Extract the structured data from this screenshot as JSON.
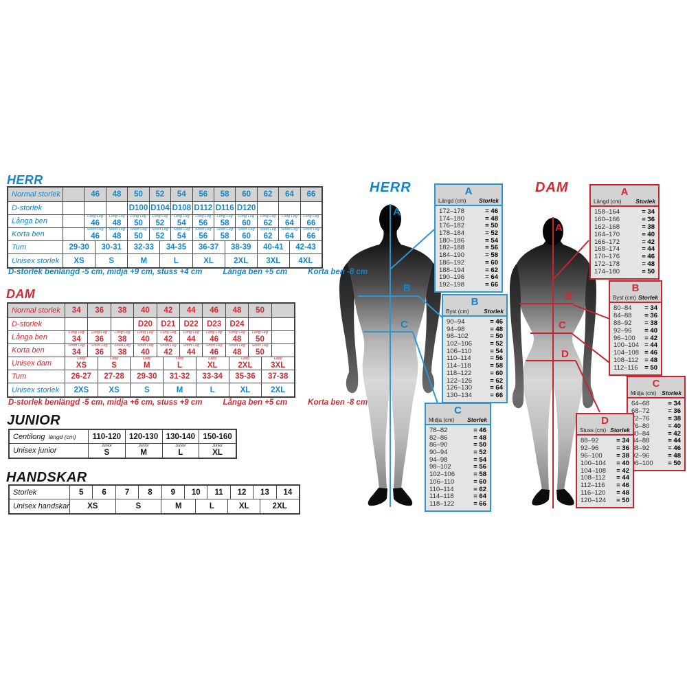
{
  "herr": {
    "title": "HERR",
    "footer": [
      "D-storlek benlängd -5 cm, midja +9 cm, stuss +4 cm",
      "Långa ben +5 cm",
      "Korta ben -8 cm"
    ],
    "rows": [
      {
        "label": "Normal storlek",
        "header": true,
        "cells": [
          {
            "t": ""
          },
          {
            "t": "46"
          },
          {
            "t": "48"
          },
          {
            "t": "50"
          },
          {
            "t": "52"
          },
          {
            "t": "54"
          },
          {
            "t": "56"
          },
          {
            "t": "58"
          },
          {
            "t": "60"
          },
          {
            "t": "62"
          },
          {
            "t": "64"
          },
          {
            "t": "66"
          }
        ]
      },
      {
        "label": "D-storlek",
        "cells": [
          {
            "t": ""
          },
          {
            "t": ""
          },
          {
            "t": ""
          },
          {
            "t": "D100"
          },
          {
            "t": "D104"
          },
          {
            "t": "D108"
          },
          {
            "t": "D112"
          },
          {
            "t": "D116"
          },
          {
            "t": "D120"
          },
          {
            "t": ""
          },
          {
            "t": ""
          },
          {
            "t": ""
          }
        ]
      },
      {
        "label": "Långa ben",
        "cells": [
          {
            "t": ""
          },
          {
            "sup": "Long Leg",
            "t": "46"
          },
          {
            "sup": "Long Leg",
            "t": "48"
          },
          {
            "sup": "Long Leg",
            "t": "50"
          },
          {
            "sup": "Long Leg",
            "t": "52"
          },
          {
            "sup": "Long Leg",
            "t": "54"
          },
          {
            "sup": "Long Leg",
            "t": "56"
          },
          {
            "sup": "Long Leg",
            "t": "58"
          },
          {
            "sup": "Long Leg",
            "t": "60"
          },
          {
            "sup": "Long Leg",
            "t": "62"
          },
          {
            "sup": "Long Leg",
            "t": "64"
          },
          {
            "sup": "Long Leg",
            "t": "66"
          }
        ]
      },
      {
        "label": "Korta ben",
        "cells": [
          {
            "t": ""
          },
          {
            "sup": "Short Leg",
            "t": "46"
          },
          {
            "sup": "Short Leg",
            "t": "48"
          },
          {
            "sup": "Short Leg",
            "t": "50"
          },
          {
            "sup": "Short Leg",
            "t": "52"
          },
          {
            "sup": "Short Leg",
            "t": "54"
          },
          {
            "sup": "Short Leg",
            "t": "56"
          },
          {
            "sup": "Short Leg",
            "t": "58"
          },
          {
            "sup": "Short Leg",
            "t": "60"
          },
          {
            "sup": "Short Leg",
            "t": "62"
          },
          {
            "sup": "Short Leg",
            "t": "64"
          },
          {
            "sup": "Short Leg",
            "t": "66"
          }
        ]
      },
      {
        "label": "Tum",
        "cells": [
          {
            "t": "29-30",
            "span": 1.5
          },
          {
            "t": "30-31",
            "span": 1.5
          },
          {
            "t": "32-33",
            "span": 1.5
          },
          {
            "t": "34-35",
            "span": 1.5
          },
          {
            "t": "36-37",
            "span": 1.5
          },
          {
            "t": "38-39",
            "span": 1.5
          },
          {
            "t": "40-41",
            "span": 1.5
          },
          {
            "t": "42-43",
            "span": 1.5
          }
        ]
      },
      {
        "label": "Unisex storlek",
        "cells": [
          {
            "t": "XS",
            "span": 1.5
          },
          {
            "t": "S",
            "span": 1.5
          },
          {
            "t": "M",
            "span": 1.5
          },
          {
            "t": "L",
            "span": 1.5
          },
          {
            "t": "XL",
            "span": 1.5
          },
          {
            "t": "2XL",
            "span": 1.5
          },
          {
            "t": "3XL",
            "span": 1.5
          },
          {
            "t": "4XL",
            "span": 1.5
          }
        ]
      }
    ]
  },
  "dam": {
    "title": "DAM",
    "footer": [
      "D-storlek benlängd -5 cm, midja +6 cm, stuss +9 cm",
      "Långa ben +5 cm",
      "Korta ben -8 cm"
    ],
    "rows": [
      {
        "label": "Normal storlek",
        "header": true,
        "cells": [
          {
            "t": "34"
          },
          {
            "t": "36"
          },
          {
            "t": "38"
          },
          {
            "t": "40"
          },
          {
            "t": "42"
          },
          {
            "t": "44"
          },
          {
            "t": "46"
          },
          {
            "t": "48"
          },
          {
            "t": "50"
          },
          {
            "t": ""
          }
        ]
      },
      {
        "label": "D-storlek",
        "cells": [
          {
            "t": ""
          },
          {
            "t": ""
          },
          {
            "t": ""
          },
          {
            "t": "D20"
          },
          {
            "t": "D21"
          },
          {
            "t": "D22"
          },
          {
            "t": "D23"
          },
          {
            "t": "D24"
          },
          {
            "t": ""
          },
          {
            "t": ""
          }
        ]
      },
      {
        "label": "Långa ben",
        "cells": [
          {
            "sup": "Long Leg",
            "t": "34"
          },
          {
            "sup": "Long Leg",
            "t": "36"
          },
          {
            "sup": "Long Leg",
            "t": "38"
          },
          {
            "sup": "Long Leg",
            "t": "40"
          },
          {
            "sup": "Long Leg",
            "t": "42"
          },
          {
            "sup": "Long Leg",
            "t": "44"
          },
          {
            "sup": "Long Leg",
            "t": "46"
          },
          {
            "sup": "Long Leg",
            "t": "48"
          },
          {
            "sup": "Long Leg",
            "t": "50"
          },
          {
            "t": ""
          }
        ]
      },
      {
        "label": "Korta ben",
        "cells": [
          {
            "sup": "Short Leg",
            "t": "34"
          },
          {
            "sup": "Short Leg",
            "t": "36"
          },
          {
            "sup": "Short Leg",
            "t": "38"
          },
          {
            "sup": "Short Leg",
            "t": "40"
          },
          {
            "sup": "Short Leg",
            "t": "42"
          },
          {
            "sup": "Short Leg",
            "t": "44"
          },
          {
            "sup": "Short Leg",
            "t": "46"
          },
          {
            "sup": "Short Leg",
            "t": "48"
          },
          {
            "sup": "Short Leg",
            "t": "50"
          },
          {
            "t": ""
          }
        ]
      },
      {
        "label": "Unisex dam",
        "cells": [
          {
            "sup": "Lady",
            "t": "XS",
            "span": 1.4286
          },
          {
            "sup": "Lady",
            "t": "S",
            "span": 1.4286
          },
          {
            "sup": "Lady",
            "t": "M",
            "span": 1.4286
          },
          {
            "sup": "Lady",
            "t": "L",
            "span": 1.4286
          },
          {
            "sup": "Lady",
            "t": "XL",
            "span": 1.4286
          },
          {
            "sup": "Lady",
            "t": "2XL",
            "span": 1.4286
          },
          {
            "sup": "Lady",
            "t": "3XL",
            "span": 1.4286
          }
        ]
      },
      {
        "label": "Tum",
        "cells": [
          {
            "t": "26-27",
            "span": 1.4286
          },
          {
            "t": "27-28",
            "span": 1.4286
          },
          {
            "t": "29-30",
            "span": 1.4286
          },
          {
            "t": "31-32",
            "span": 1.4286
          },
          {
            "t": "33-34",
            "span": 1.4286
          },
          {
            "t": "35-36",
            "span": 1.4286
          },
          {
            "t": "37-38",
            "span": 1.4286
          }
        ]
      },
      {
        "label": "Unisex storlek",
        "cls": "blue",
        "cells": [
          {
            "t": "2XS",
            "span": 1.4286
          },
          {
            "t": "XS",
            "span": 1.4286
          },
          {
            "t": "S",
            "span": 1.4286
          },
          {
            "t": "M",
            "span": 1.4286
          },
          {
            "t": "L",
            "span": 1.4286
          },
          {
            "t": "XL",
            "span": 1.4286
          },
          {
            "t": "2XL",
            "span": 1.4286
          }
        ]
      }
    ]
  },
  "junior": {
    "title": "JUNIOR",
    "rows": [
      {
        "label": "Centilong",
        "sublabel": "längd (cm)",
        "cells": [
          {
            "t": "110-120"
          },
          {
            "t": "120-130"
          },
          {
            "t": "130-140"
          },
          {
            "t": "150-160"
          }
        ]
      },
      {
        "label": "Unisex junior",
        "cells": [
          {
            "sup": "Junior",
            "t": "S"
          },
          {
            "sup": "Junior",
            "t": "M"
          },
          {
            "sup": "Junior",
            "t": "L"
          },
          {
            "sup": "Junior",
            "t": "XL"
          }
        ]
      }
    ]
  },
  "handskar": {
    "title": "HANDSKAR",
    "rows": [
      {
        "label": "Storlek",
        "cells": [
          {
            "t": "5"
          },
          {
            "t": "6"
          },
          {
            "t": "7"
          },
          {
            "t": "8"
          },
          {
            "t": "9"
          },
          {
            "t": "10"
          },
          {
            "t": "11"
          },
          {
            "t": "12"
          },
          {
            "t": "13"
          },
          {
            "t": "14"
          }
        ]
      },
      {
        "label": "Unisex handskar",
        "cells": [
          {
            "t": "XS",
            "span": 2
          },
          {
            "t": "S",
            "span": 2
          },
          {
            "t": "M",
            "span": 1.5
          },
          {
            "t": "L",
            "span": 1.4
          },
          {
            "t": "XL",
            "span": 1.4
          },
          {
            "t": "2XL",
            "span": 1.7
          }
        ]
      }
    ]
  },
  "figures": {
    "herr_label": "HERR",
    "dam_label": "DAM",
    "herr_markers": [
      "A",
      "B",
      "C"
    ],
    "dam_markers": [
      "A",
      "B",
      "C",
      "D"
    ]
  },
  "fit_tables": {
    "herr": [
      {
        "letter": "A",
        "col1": "Längd (cm)",
        "col2": "Storlek",
        "rows": [
          [
            "172–178",
            "46"
          ],
          [
            "174–180",
            "48"
          ],
          [
            "176–182",
            "50"
          ],
          [
            "178–184",
            "52"
          ],
          [
            "180–186",
            "54"
          ],
          [
            "182–188",
            "56"
          ],
          [
            "184–190",
            "58"
          ],
          [
            "186–192",
            "60"
          ],
          [
            "188–194",
            "62"
          ],
          [
            "190–196",
            "64"
          ],
          [
            "192–198",
            "66"
          ]
        ]
      },
      {
        "letter": "B",
        "col1": "Byst (cm)",
        "col2": "Storlek",
        "rows": [
          [
            "90–94",
            "46"
          ],
          [
            "94–98",
            "48"
          ],
          [
            "98–102",
            "50"
          ],
          [
            "102–106",
            "52"
          ],
          [
            "106–110",
            "54"
          ],
          [
            "110–114",
            "56"
          ],
          [
            "114–118",
            "58"
          ],
          [
            "118–122",
            "60"
          ],
          [
            "122–126",
            "62"
          ],
          [
            "126–130",
            "64"
          ],
          [
            "130–134",
            "66"
          ]
        ]
      },
      {
        "letter": "C",
        "col1": "Midja (cm)",
        "col2": "Storlek",
        "rows": [
          [
            "78–82",
            "46"
          ],
          [
            "82–86",
            "48"
          ],
          [
            "86–90",
            "50"
          ],
          [
            "90–94",
            "52"
          ],
          [
            "94–98",
            "54"
          ],
          [
            "98–102",
            "56"
          ],
          [
            "102–106",
            "58"
          ],
          [
            "106–110",
            "60"
          ],
          [
            "110–114",
            "62"
          ],
          [
            "114–118",
            "64"
          ],
          [
            "118–122",
            "66"
          ]
        ]
      }
    ],
    "dam": [
      {
        "letter": "A",
        "col1": "Längd (cm)",
        "col2": "Storlek",
        "rows": [
          [
            "158–164",
            "34"
          ],
          [
            "160–166",
            "36"
          ],
          [
            "162–168",
            "38"
          ],
          [
            "164–170",
            "40"
          ],
          [
            "166–172",
            "42"
          ],
          [
            "168–174",
            "44"
          ],
          [
            "170–176",
            "46"
          ],
          [
            "172–178",
            "48"
          ],
          [
            "174–180",
            "50"
          ]
        ]
      },
      {
        "letter": "B",
        "col1": "Byst (cm)",
        "col2": "Storlek",
        "rows": [
          [
            "80–84",
            "34"
          ],
          [
            "84–88",
            "36"
          ],
          [
            "88–92",
            "38"
          ],
          [
            "92–96",
            "40"
          ],
          [
            "96–100",
            "42"
          ],
          [
            "100–104",
            "44"
          ],
          [
            "104–108",
            "46"
          ],
          [
            "108–112",
            "48"
          ],
          [
            "112–116",
            "50"
          ]
        ]
      },
      {
        "letter": "C",
        "col1": "Midja (cm)",
        "col2": "Storlek",
        "rows": [
          [
            "64–68",
            "34"
          ],
          [
            "68–72",
            "36"
          ],
          [
            "72–76",
            "38"
          ],
          [
            "76–80",
            "40"
          ],
          [
            "80–84",
            "42"
          ],
          [
            "84–88",
            "44"
          ],
          [
            "88–92",
            "46"
          ],
          [
            "92–96",
            "48"
          ],
          [
            "96–100",
            "50"
          ]
        ]
      },
      {
        "letter": "D",
        "col1": "Stuss (cm)",
        "col2": "Storlek",
        "rows": [
          [
            "88–92",
            "34"
          ],
          [
            "92–96",
            "36"
          ],
          [
            "96–100",
            "38"
          ],
          [
            "100–104",
            "40"
          ],
          [
            "104–108",
            "42"
          ],
          [
            "108–112",
            "44"
          ],
          [
            "112–116",
            "46"
          ],
          [
            "116–120",
            "48"
          ],
          [
            "120–124",
            "50"
          ]
        ]
      }
    ]
  },
  "colors": {
    "blue_text": "#1485c8",
    "blue_line": "#2a97d4",
    "red_text": "#d02a33",
    "red_line": "#c6242e",
    "header_bg": "#d3d3d3"
  }
}
